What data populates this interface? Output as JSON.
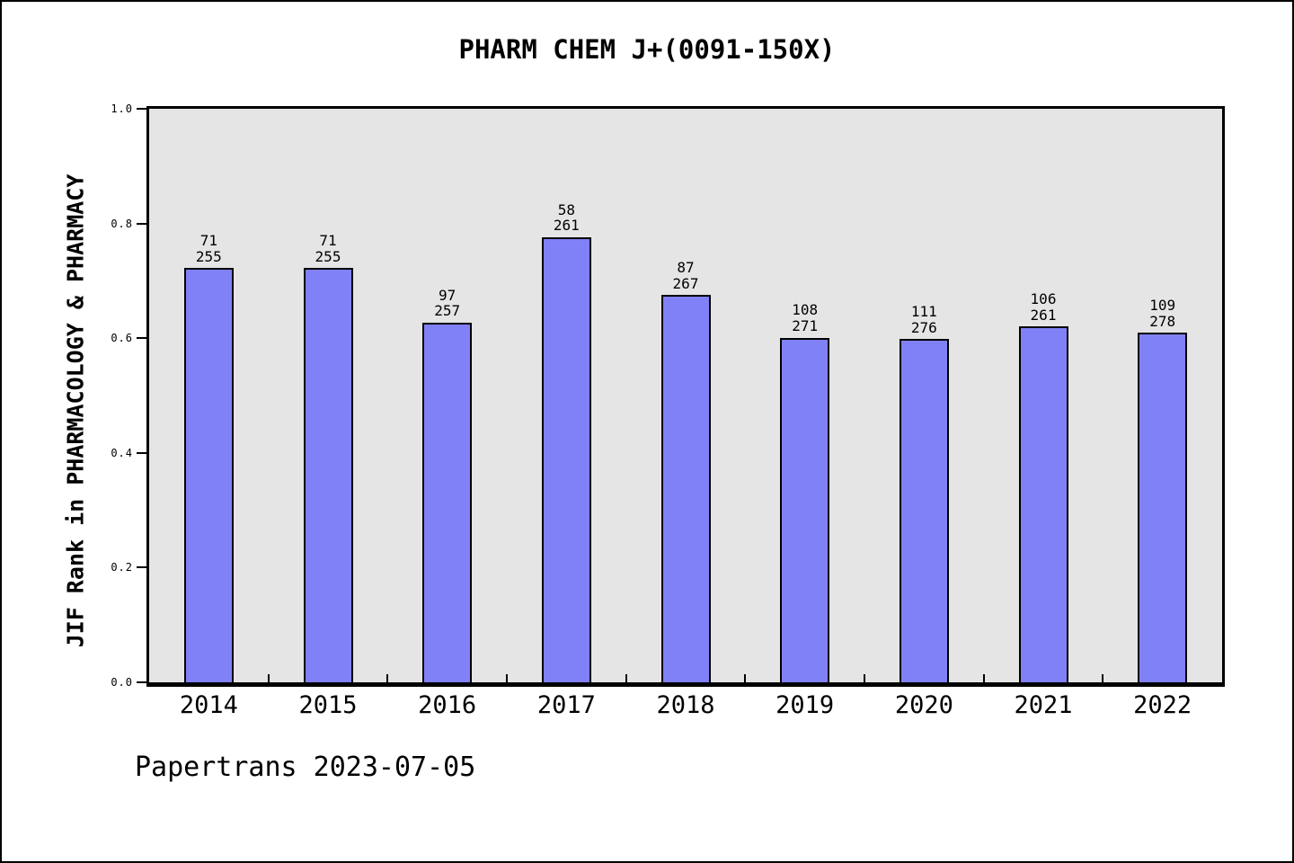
{
  "page": {
    "background": "#ffffff",
    "border_color": "#000000"
  },
  "chart_data": {
    "type": "bar",
    "title": "PHARM CHEM J+(0091-150X)",
    "xlabel": "",
    "ylabel": "JIF Rank in PHARMACOLOGY & PHARMACY",
    "categories": [
      "2014",
      "2015",
      "2016",
      "2017",
      "2018",
      "2019",
      "2020",
      "2021",
      "2022"
    ],
    "values": [
      0.722,
      0.722,
      0.627,
      0.776,
      0.675,
      0.601,
      0.598,
      0.62,
      0.609
    ],
    "bar_labels": [
      [
        "71",
        "255"
      ],
      [
        "71",
        "255"
      ],
      [
        "97",
        "257"
      ],
      [
        "58",
        "261"
      ],
      [
        "87",
        "267"
      ],
      [
        "108",
        "271"
      ],
      [
        "111",
        "276"
      ],
      [
        "106",
        "261"
      ],
      [
        "109",
        "278"
      ]
    ],
    "ylim": [
      0.0,
      1.0
    ],
    "yticks": [
      "0.0",
      "0.2",
      "0.4",
      "0.6",
      "0.8",
      "1.0"
    ],
    "grid": false,
    "legend": "none",
    "bar_color": "#8181f7",
    "bar_edge_color": "#000000",
    "plot_background": "#e5e5e5"
  },
  "footer": {
    "text": "Papertrans 2023-07-05"
  }
}
